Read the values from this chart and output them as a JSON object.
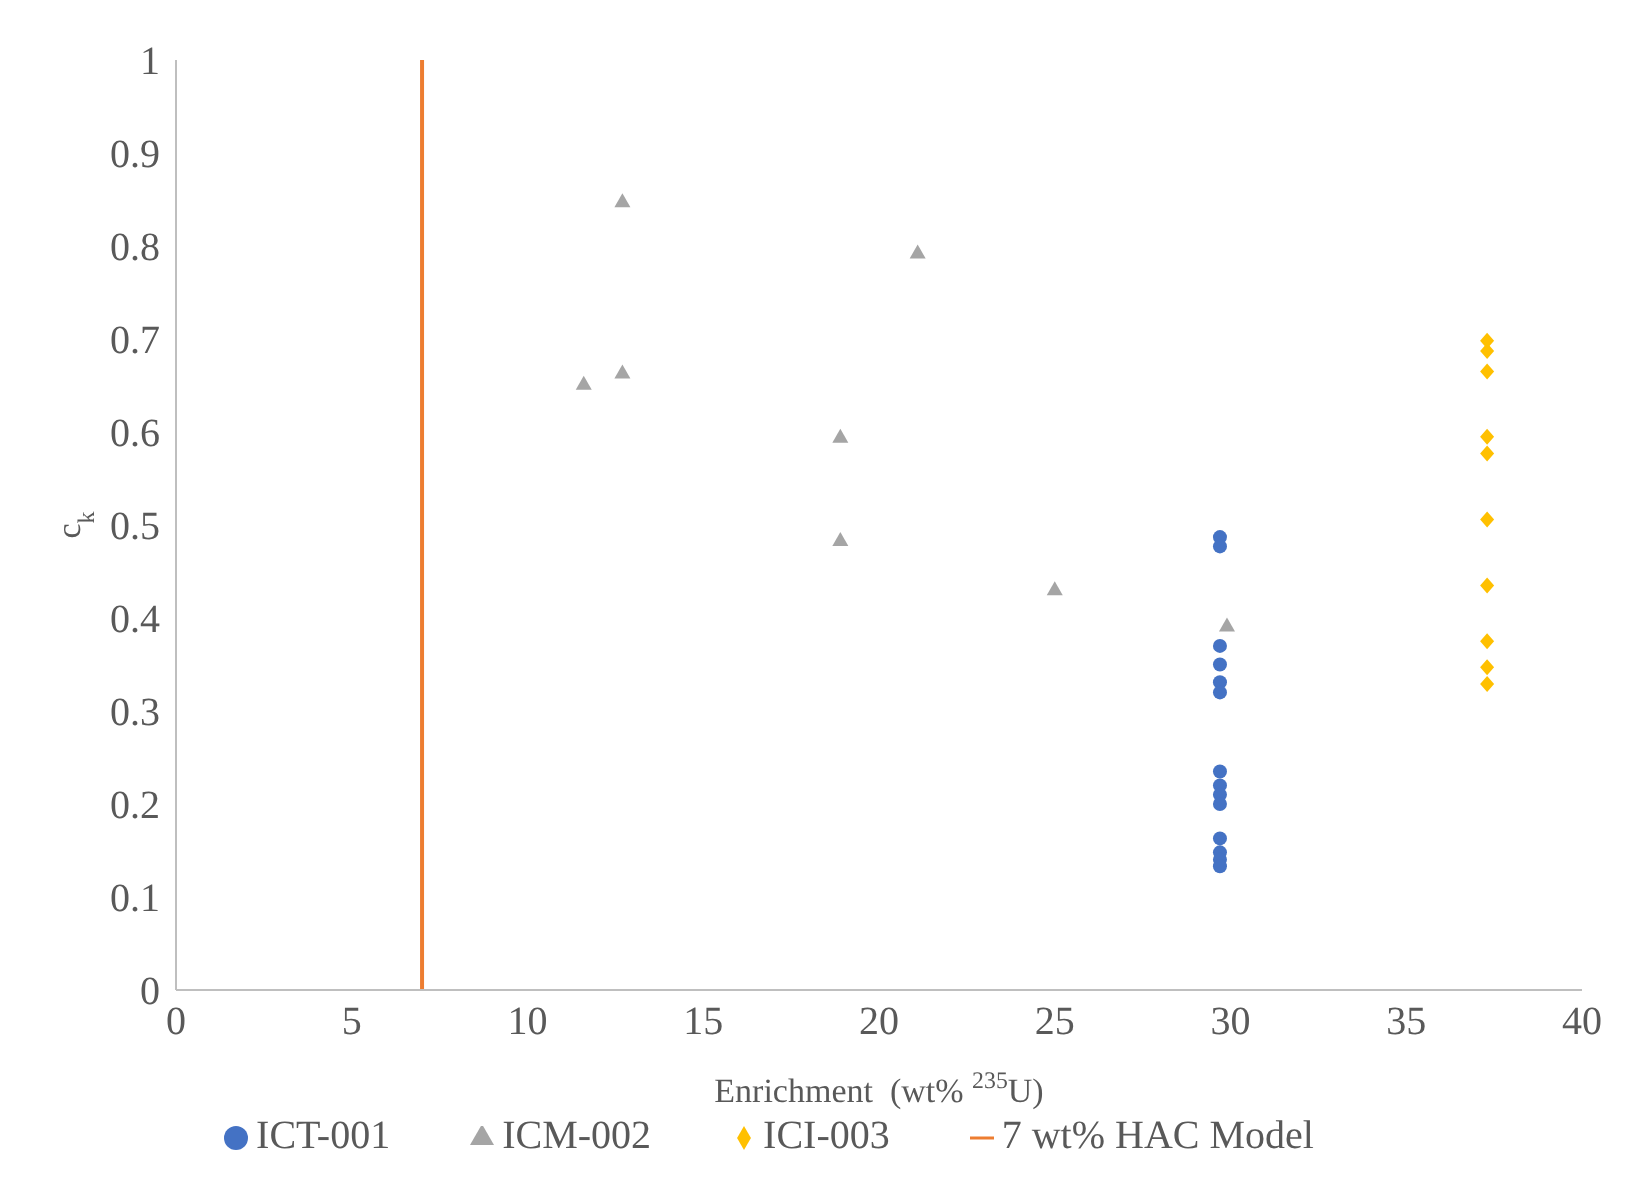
{
  "chart_data": {
    "type": "scatter",
    "xlabel": "Enrichment  (wt% $^{235}$U)",
    "ylabel": "c$_{k}$",
    "xlim": [
      0,
      40
    ],
    "xticks": [
      0,
      5,
      10,
      15,
      20,
      25,
      30,
      35,
      40
    ],
    "ylim": [
      0,
      1
    ],
    "yticks": [
      0,
      0.1,
      0.2,
      0.3,
      0.4,
      0.5,
      0.6,
      0.7,
      0.8,
      0.9,
      1
    ],
    "grid": false,
    "legend": "bottom",
    "series": [
      {
        "name": "ICT-001",
        "color": "#4472c4",
        "marker": "circle",
        "x": [
          29.7,
          29.7,
          29.7,
          29.7,
          29.7,
          29.7,
          29.7,
          29.7,
          29.7,
          29.7,
          29.7,
          29.7,
          29.7,
          29.7
        ],
        "values": [
          0.487,
          0.477,
          0.37,
          0.35,
          0.331,
          0.32,
          0.235,
          0.22,
          0.21,
          0.2,
          0.163,
          0.148,
          0.14,
          0.133
        ]
      },
      {
        "name": "ICM-002",
        "color": "#a5a5a5",
        "marker": "triangle",
        "x": [
          12.7,
          21.1,
          11.6,
          12.7,
          18.9,
          18.9,
          25.0,
          29.9
        ],
        "values": [
          0.848,
          0.793,
          0.652,
          0.664,
          0.595,
          0.484,
          0.431,
          0.392
        ]
      },
      {
        "name": "ICI-003",
        "color": "#ffc000",
        "marker": "diamond",
        "x": [
          37.3,
          37.3,
          37.3,
          37.3,
          37.3,
          37.3,
          37.3,
          37.3,
          37.3,
          37.3
        ],
        "values": [
          0.698,
          0.687,
          0.665,
          0.595,
          0.577,
          0.506,
          0.435,
          0.375,
          0.347,
          0.329
        ]
      },
      {
        "name": "7 wt% HAC Model",
        "type": "line",
        "color": "#ed7d31",
        "marker": "none",
        "line_style": "solid",
        "x": [
          7,
          7
        ],
        "values": [
          0,
          1
        ]
      }
    ]
  }
}
